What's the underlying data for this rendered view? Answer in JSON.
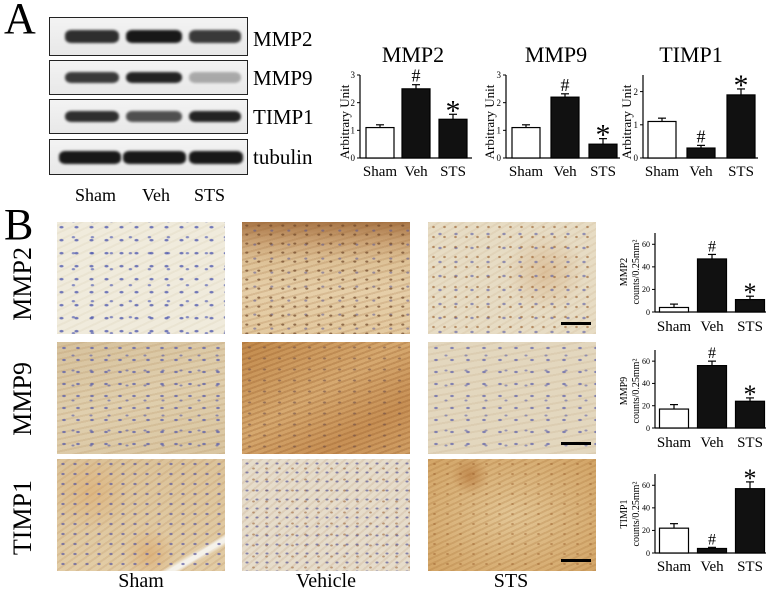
{
  "panel_a": {
    "letter": "A",
    "blot_rows": [
      {
        "label": "MMP2",
        "bands": [
          0.85,
          0.95,
          0.8
        ]
      },
      {
        "label": "MMP9",
        "bands": [
          0.8,
          0.9,
          0.3
        ]
      },
      {
        "label": "TIMP1",
        "bands": [
          0.85,
          0.7,
          0.9
        ]
      },
      {
        "label": "tubulin",
        "bands": [
          0.95,
          0.95,
          0.95
        ]
      }
    ],
    "lanes": [
      "Sham",
      "Veh",
      "STS"
    ]
  },
  "panel_b": {
    "letter": "B",
    "rows": [
      "MMP2",
      "MMP9",
      "TIMP1"
    ],
    "columns": [
      "Sham",
      "Vehicle",
      "STS"
    ]
  },
  "chart_data": [
    {
      "type": "bar",
      "title": "MMP2",
      "ylabel_lines": [
        "Arbitrary Unit"
      ],
      "categories": [
        "Sham",
        "Veh",
        "STS"
      ],
      "values": [
        1.1,
        2.5,
        1.4
      ],
      "errors": [
        0.1,
        0.15,
        0.18
      ],
      "annotations": [
        "",
        "#",
        "*"
      ],
      "bar_colors": [
        "#ffffff",
        "#111111",
        "#111111"
      ],
      "yticks": [
        0,
        1,
        2,
        3
      ],
      "ylim": [
        0,
        3
      ]
    },
    {
      "type": "bar",
      "title": "MMP9",
      "ylabel_lines": [
        "Arbitrary Unit"
      ],
      "categories": [
        "Sham",
        "Veh",
        "STS"
      ],
      "values": [
        1.1,
        2.2,
        0.5
      ],
      "errors": [
        0.1,
        0.12,
        0.2
      ],
      "annotations": [
        "",
        "#",
        "*"
      ],
      "bar_colors": [
        "#ffffff",
        "#111111",
        "#111111"
      ],
      "yticks": [
        0,
        1,
        2,
        3
      ],
      "ylim": [
        0,
        3
      ]
    },
    {
      "type": "bar",
      "title": "TIMP1",
      "ylabel_lines": [
        "Arbitrary Unit"
      ],
      "categories": [
        "Sham",
        "Veh",
        "STS"
      ],
      "values": [
        1.1,
        0.3,
        1.9
      ],
      "errors": [
        0.1,
        0.08,
        0.18
      ],
      "annotations": [
        "",
        "#",
        "*"
      ],
      "bar_colors": [
        "#ffffff",
        "#111111",
        "#111111"
      ],
      "yticks": [
        0,
        1,
        2
      ],
      "ylim": [
        0,
        2.5
      ]
    },
    {
      "type": "bar",
      "ylabel_lines": [
        "MMP2",
        "counts/0.25mm²"
      ],
      "categories": [
        "Sham",
        "Veh",
        "STS"
      ],
      "values": [
        4,
        47,
        11
      ],
      "errors": [
        3,
        4,
        3
      ],
      "annotations": [
        "",
        "#",
        "*"
      ],
      "bar_colors": [
        "#ffffff",
        "#111111",
        "#111111"
      ],
      "yticks": [
        0,
        20,
        40,
        60
      ],
      "ylim": [
        0,
        70
      ]
    },
    {
      "type": "bar",
      "ylabel_lines": [
        "MMP9",
        "counts/0.25mm²"
      ],
      "categories": [
        "Sham",
        "Veh",
        "STS"
      ],
      "values": [
        17,
        56,
        24
      ],
      "errors": [
        4,
        4,
        3
      ],
      "annotations": [
        "",
        "#",
        "*"
      ],
      "bar_colors": [
        "#ffffff",
        "#111111",
        "#111111"
      ],
      "yticks": [
        0,
        20,
        40,
        60
      ],
      "ylim": [
        0,
        70
      ]
    },
    {
      "type": "bar",
      "ylabel_lines": [
        "TIMP1",
        "counts/0.25mm²"
      ],
      "categories": [
        "Sham",
        "Veh",
        "STS"
      ],
      "values": [
        22,
        4,
        57
      ],
      "errors": [
        4,
        1,
        6
      ],
      "annotations": [
        "",
        "#",
        "*"
      ],
      "bar_colors": [
        "#ffffff",
        "#111111",
        "#111111"
      ],
      "yticks": [
        0,
        20,
        40,
        60
      ],
      "ylim": [
        0,
        70
      ]
    }
  ]
}
